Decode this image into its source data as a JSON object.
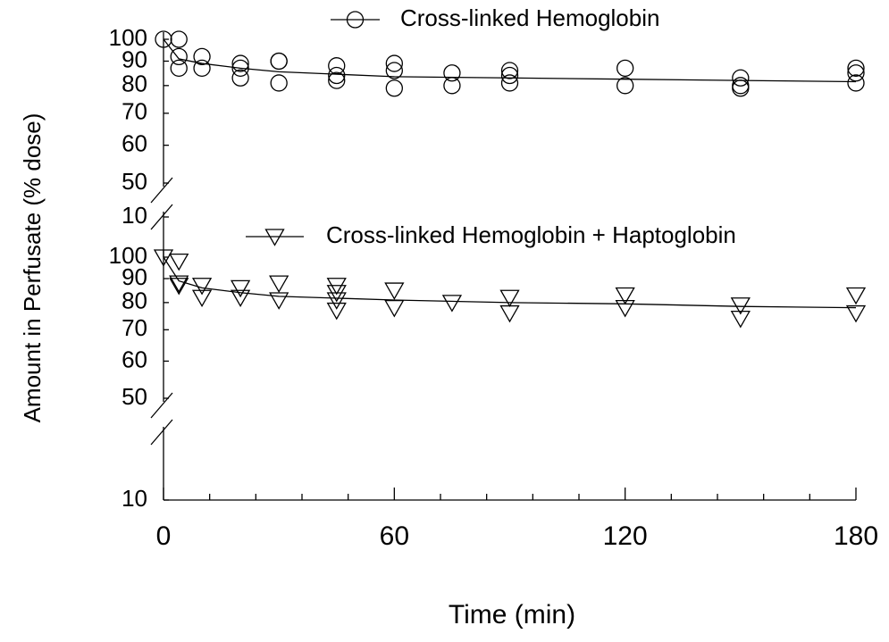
{
  "chart_data": [
    {
      "type": "scatter",
      "ylabel": "Amount in Perfusate (% dose)",
      "yscale": "log",
      "axis_break": true,
      "xlim": [
        0,
        180
      ],
      "ylim": [
        10,
        100
      ],
      "yticks": [
        10,
        50,
        60,
        70,
        80,
        90,
        100
      ],
      "series": [
        {
          "name": "Cross-linked Hemoglobin",
          "marker": "circle",
          "color": "#000000",
          "x": [
            0,
            4,
            4,
            4,
            10,
            10,
            20,
            20,
            20,
            30,
            30,
            30,
            45,
            45,
            45,
            60,
            60,
            60,
            75,
            75,
            90,
            90,
            90,
            120,
            120,
            150,
            150,
            150,
            180,
            180,
            180
          ],
          "values": [
            100,
            100,
            92,
            87,
            92,
            87,
            89,
            87,
            83,
            90,
            90,
            81,
            88,
            84,
            82,
            89,
            86,
            79,
            85,
            80,
            86,
            84,
            81,
            87,
            80,
            83,
            80,
            79,
            87,
            85,
            81
          ],
          "fit": {
            "x": [
              0,
              4,
              10,
              20,
              30,
              45,
              60,
              90,
              120,
              150,
              180
            ],
            "values": [
              100,
              91,
              89,
              87,
              85.5,
              84.5,
              83.5,
              83,
              82.5,
              82,
              81.5
            ]
          }
        }
      ]
    },
    {
      "type": "scatter",
      "xlabel": "Time (min)",
      "yscale": "log",
      "axis_break": true,
      "xlim": [
        0,
        180
      ],
      "xticks": [
        0,
        60,
        120,
        180
      ],
      "xminorticks": [
        12,
        24,
        36,
        48,
        72,
        84,
        96,
        108,
        132,
        144,
        156,
        168
      ],
      "ylim": [
        10,
        100
      ],
      "yticks": [
        10,
        50,
        60,
        70,
        80,
        90,
        100
      ],
      "series": [
        {
          "name": "Cross-linked Hemoglobin + Haptoglobin",
          "marker": "triangle-down",
          "color": "#000000",
          "x": [
            0,
            4,
            4,
            4,
            10,
            10,
            20,
            20,
            30,
            30,
            45,
            45,
            45,
            45,
            60,
            60,
            75,
            90,
            90,
            120,
            120,
            150,
            150,
            180,
            180
          ],
          "values": [
            100,
            98,
            88,
            87,
            87,
            82,
            86,
            82,
            88,
            81,
            87,
            84,
            81,
            77,
            85,
            78,
            80,
            82,
            76,
            83,
            78,
            79,
            74,
            83,
            76
          ],
          "fit": {
            "x": [
              0,
              4,
              10,
              20,
              30,
              60,
              90,
              120,
              150,
              180
            ],
            "values": [
              100,
              89,
              86,
              84,
              82.5,
              81,
              80,
              79.5,
              78.5,
              78
            ]
          }
        }
      ]
    }
  ]
}
